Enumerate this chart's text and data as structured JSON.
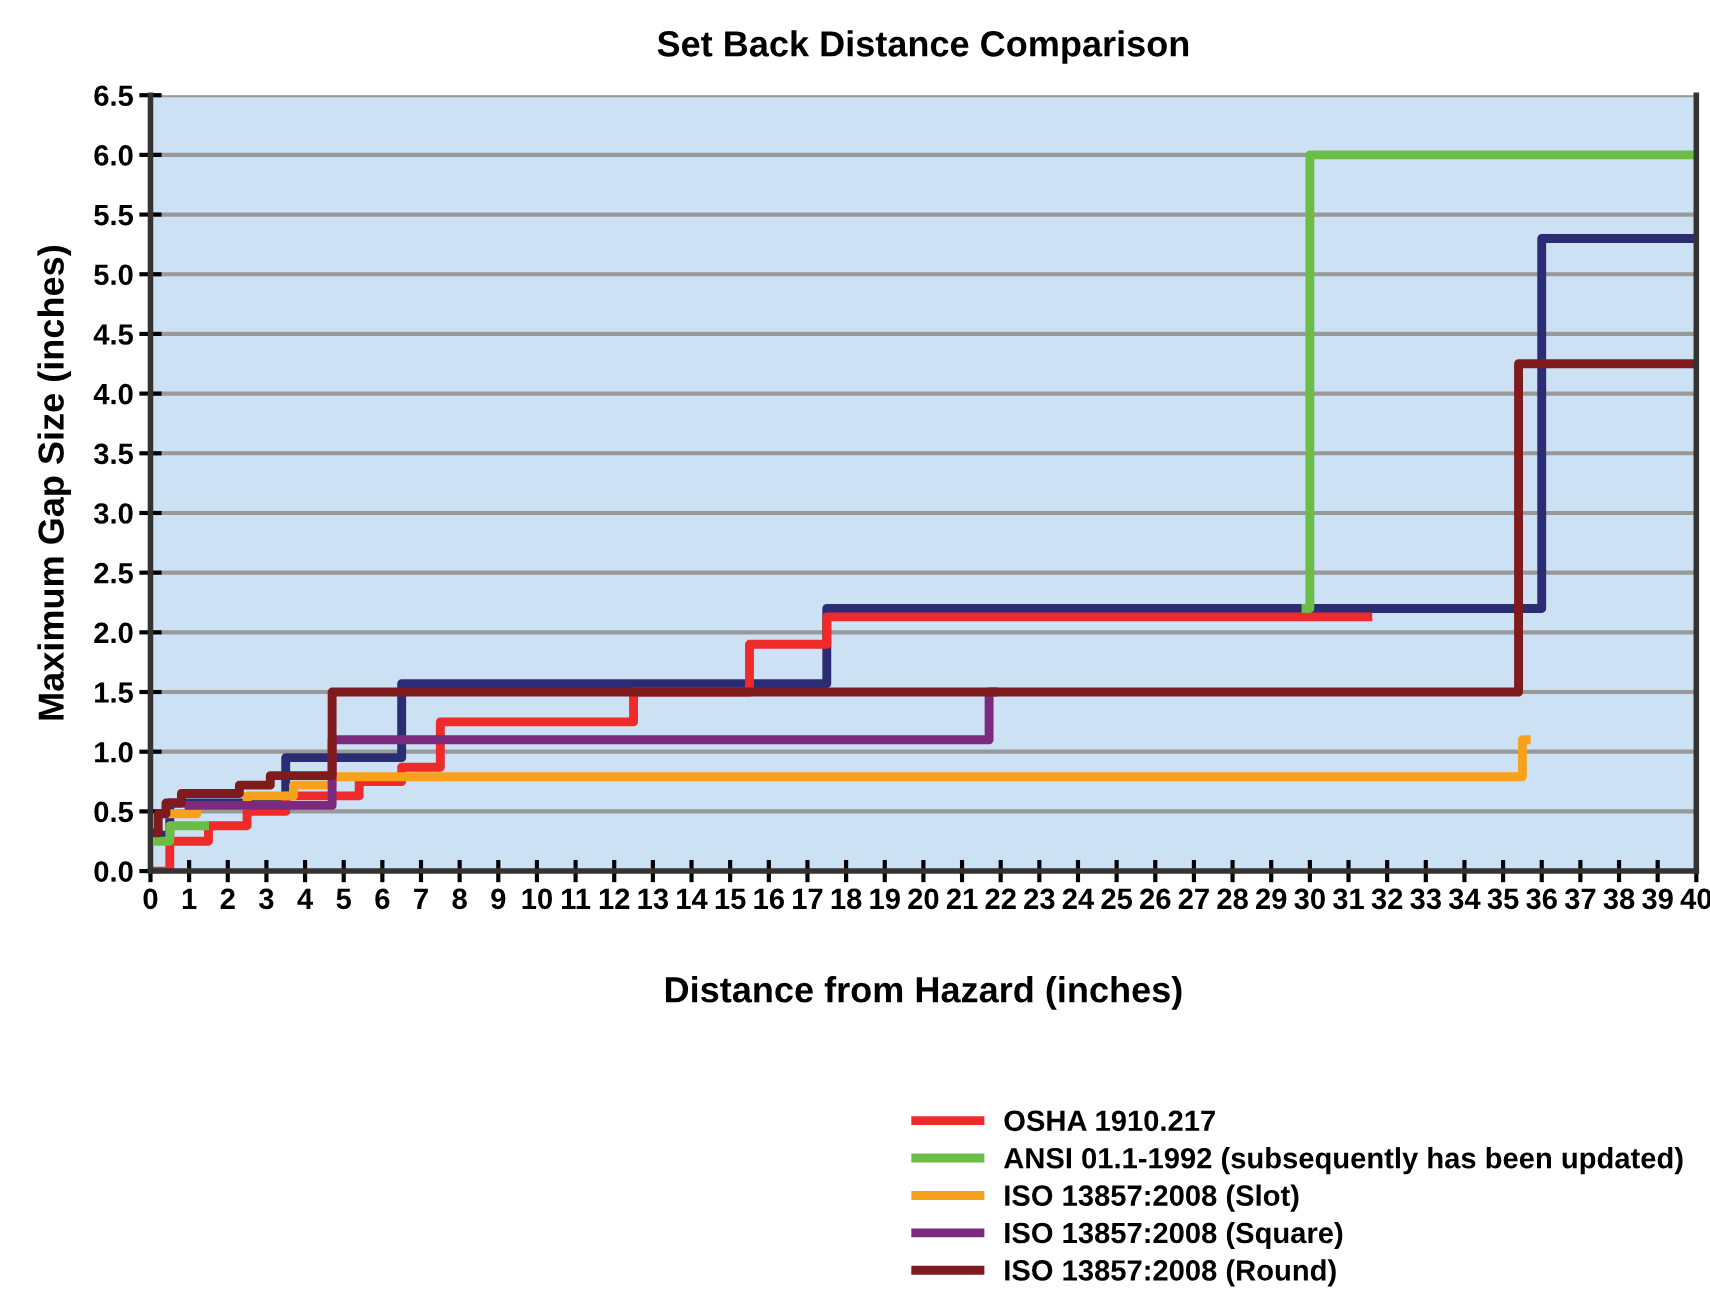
{
  "chart_data": {
    "type": "step",
    "title": "Set Back Distance Comparison",
    "xlabel": "Distance from Hazard (inches)",
    "ylabel": "Maximum Gap Size (inches)",
    "xlim": [
      0,
      40
    ],
    "xticks": [
      0,
      1,
      2,
      3,
      4,
      5,
      6,
      7,
      8,
      9,
      10,
      11,
      12,
      13,
      14,
      15,
      16,
      17,
      18,
      19,
      20,
      21,
      22,
      23,
      24,
      25,
      26,
      27,
      28,
      29,
      30,
      31,
      32,
      33,
      34,
      35,
      36,
      37,
      38,
      39,
      40
    ],
    "ylim": [
      0,
      6.5
    ],
    "yticks": [
      {
        "value": 0,
        "label": "0.0"
      },
      {
        "value": 0.5,
        "label": "0.5"
      },
      {
        "value": 1,
        "label": "1.0"
      },
      {
        "value": 1.5,
        "label": "1.5"
      },
      {
        "value": 2,
        "label": "2.0"
      },
      {
        "value": 2.5,
        "label": "2.5"
      },
      {
        "value": 3,
        "label": "3.0"
      },
      {
        "value": 3.5,
        "label": "3.5"
      },
      {
        "value": 4,
        "label": "4.0"
      },
      {
        "value": 4.5,
        "label": "4.5"
      },
      {
        "value": 5,
        "label": "5.0"
      },
      {
        "value": 5.5,
        "label": "5.5"
      },
      {
        "value": 6,
        "label": "6.0"
      },
      {
        "value": 6.5,
        "label": "6.5"
      }
    ],
    "grid": "y",
    "legend": "bottom right",
    "line_style": "solid",
    "marker": "none",
    "series": [
      {
        "color": "#2b2c74",
        "x": [
          0.3,
          0.5,
          3.5,
          6.5,
          17.5,
          36,
          40
        ],
        "values": [
          0.3,
          0.57,
          0.95,
          1.57,
          2.2,
          5.3,
          5.3
        ]
      },
      {
        "name": "OSHA 1910.217",
        "color": "#ee2a2a",
        "x": [
          0,
          0.5,
          1.5,
          2.5,
          3.5,
          5.4,
          6.5,
          7.5,
          12.5,
          15.5,
          17.5,
          31.5
        ],
        "values": [
          0,
          0.25,
          0.38,
          0.5,
          0.63,
          0.75,
          0.87,
          1.25,
          1.5,
          1.9,
          2.13,
          2.13
        ]
      },
      {
        "name": "ANSI 01.1-1992 (subsequently has been updated)",
        "color": "#6cbd45",
        "x": [
          0.2,
          0.5,
          1.4,
          29.9,
          30,
          40
        ],
        "values": [
          0.25,
          0.38,
          null,
          2.2,
          6.0,
          6.0
        ]
      },
      {
        "name": "ISO 13857:2008 (Slot)",
        "color": "#f7a11d",
        "x": [
          0.5,
          1.2,
          2.5,
          3.7,
          4.7,
          35.5,
          35.6
        ],
        "values": [
          0.48,
          0.55,
          0.63,
          0.72,
          0.79,
          1.1,
          1.1
        ]
      },
      {
        "name": "ISO 13857:2008 (Square)",
        "color": "#7b2a7d",
        "x": [
          1.0,
          4.7,
          21.7,
          21.8
        ],
        "values": [
          0.55,
          1.1,
          1.5,
          1.5
        ]
      },
      {
        "name": "ISO 13857:2008 (Round)",
        "color": "#7f1a1d",
        "x": [
          0,
          0.2,
          0.4,
          0.8,
          2.3,
          3.1,
          4.7,
          35.4,
          40
        ],
        "values": [
          0.32,
          0.48,
          0.57,
          0.65,
          0.72,
          0.8,
          1.5,
          4.25,
          4.25
        ]
      }
    ]
  }
}
